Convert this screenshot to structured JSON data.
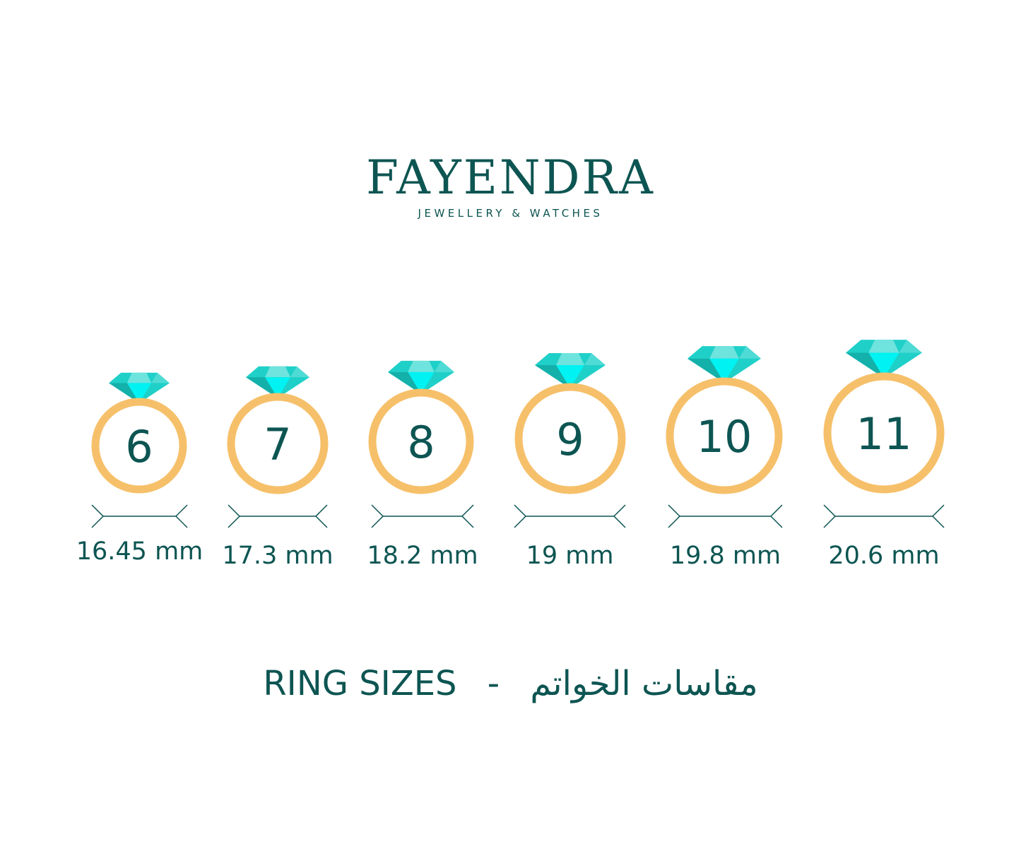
{
  "brand": {
    "name": "FAYENDRA",
    "tagline": "JEWELLERY & WATCHES"
  },
  "rings": [
    {
      "size": "6",
      "diameter": "16.45 mm"
    },
    {
      "size": "7",
      "diameter": "17.3 mm"
    },
    {
      "size": "8",
      "diameter": "18.2 mm"
    },
    {
      "size": "9",
      "diameter": "19 mm"
    },
    {
      "size": "10",
      "diameter": "19.8 mm"
    },
    {
      "size": "11",
      "diameter": "20.6 mm"
    }
  ],
  "title": {
    "english": "RING SIZES",
    "separator": "-",
    "arabic": "مقاسات الخواتم"
  },
  "colors": {
    "text": "#0d5552",
    "ring": "#f6c06a",
    "gem": "#1fd0c8",
    "gem_light": "#6fe3dd",
    "gem_bright": "#00f2f2",
    "gem_dark": "#14b0aa"
  }
}
